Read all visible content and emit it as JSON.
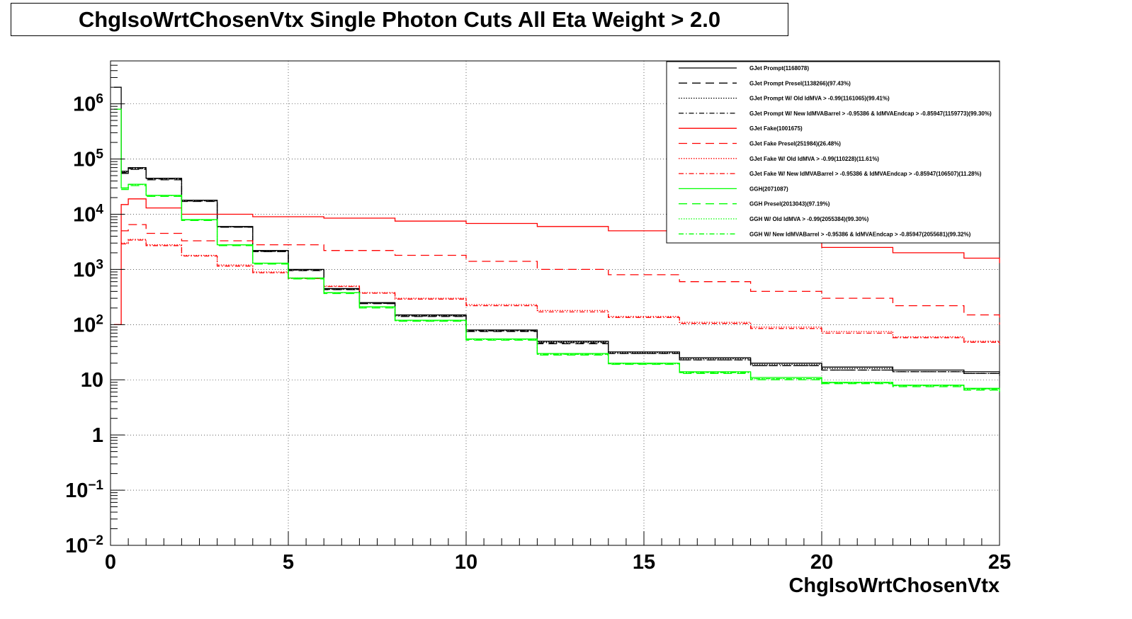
{
  "title": "ChgIsoWrtChosenVtx Single Photon Cuts All Eta Weight > 2.0",
  "chart_data": {
    "type": "line",
    "title": "ChgIsoWrtChosenVtx Single Photon Cuts All Eta Weight > 2.0",
    "xlabel": "ChgIsoWrtChosenVtx",
    "ylabel": "",
    "xlim": [
      0,
      25
    ],
    "ylim": [
      0.01,
      6000000
    ],
    "y_scale": "log",
    "grid": true,
    "legend_position": "top-right",
    "x_ticks": [
      {
        "value": 0,
        "label": "0"
      },
      {
        "value": 5,
        "label": "5"
      },
      {
        "value": 10,
        "label": "10"
      },
      {
        "value": 15,
        "label": "15"
      },
      {
        "value": 20,
        "label": "20"
      },
      {
        "value": 25,
        "label": "25"
      }
    ],
    "y_ticks": [
      {
        "value": 0.01,
        "base": "10",
        "exp": "−2"
      },
      {
        "value": 0.1,
        "base": "10",
        "exp": "−1"
      },
      {
        "value": 1,
        "base": "1",
        "exp": ""
      },
      {
        "value": 10,
        "base": "10",
        "exp": ""
      },
      {
        "value": 100,
        "base": "10",
        "exp": "2"
      },
      {
        "value": 1000,
        "base": "10",
        "exp": "3"
      },
      {
        "value": 10000,
        "base": "10",
        "exp": "4"
      },
      {
        "value": 100000,
        "base": "10",
        "exp": "5"
      },
      {
        "value": 1000000,
        "base": "10",
        "exp": "6"
      }
    ],
    "series": [
      {
        "name": "GJet Prompt(1168078)",
        "color": "#000000",
        "style": "solid",
        "points": [
          [
            0.1,
            2000000
          ],
          [
            0.3,
            60000
          ],
          [
            0.5,
            70000
          ],
          [
            1,
            45000
          ],
          [
            2,
            18000
          ],
          [
            3,
            6000
          ],
          [
            4,
            2200
          ],
          [
            5,
            1000
          ],
          [
            6,
            450
          ],
          [
            7,
            250
          ],
          [
            8,
            150
          ],
          [
            10,
            80
          ],
          [
            12,
            50
          ],
          [
            14,
            32
          ],
          [
            16,
            25
          ],
          [
            18,
            20
          ],
          [
            20,
            17
          ],
          [
            22,
            15
          ],
          [
            24,
            14
          ],
          [
            25,
            13
          ]
        ]
      },
      {
        "name": "GJet Prompt Presel(1138266)(97.43%)",
        "color": "#000000",
        "style": "dashed",
        "points": [
          [
            0.3,
            55000
          ],
          [
            0.5,
            65000
          ],
          [
            1,
            42000
          ],
          [
            2,
            17000
          ],
          [
            3,
            5800
          ],
          [
            4,
            2100
          ],
          [
            5,
            950
          ],
          [
            6,
            430
          ],
          [
            7,
            240
          ],
          [
            8,
            140
          ],
          [
            10,
            75
          ],
          [
            12,
            45
          ],
          [
            14,
            30
          ],
          [
            16,
            23
          ],
          [
            18,
            18
          ],
          [
            20,
            15
          ],
          [
            22,
            14
          ],
          [
            24,
            13
          ],
          [
            25,
            12
          ]
        ]
      },
      {
        "name": "GJet Prompt W/ Old IdMVA > -0.99(1161065)(99.41%)",
        "color": "#000000",
        "style": "dotted",
        "points": [
          [
            0.3,
            58000
          ],
          [
            0.5,
            68000
          ],
          [
            1,
            44000
          ],
          [
            2,
            17500
          ],
          [
            3,
            5900
          ],
          [
            4,
            2150
          ],
          [
            5,
            980
          ],
          [
            6,
            440
          ],
          [
            7,
            245
          ],
          [
            8,
            145
          ],
          [
            10,
            78
          ],
          [
            12,
            48
          ],
          [
            14,
            31
          ],
          [
            16,
            24
          ],
          [
            18,
            19
          ],
          [
            20,
            16
          ],
          [
            22,
            14
          ],
          [
            24,
            13
          ],
          [
            25,
            12
          ]
        ]
      },
      {
        "name": "GJet Prompt W/ New IdMVABarrel > -0.95386 & IdMVAEndcap > -0.85947(1159773)(99.30%)",
        "color": "#000000",
        "style": "dashdot",
        "points": [
          [
            0.3,
            57000
          ],
          [
            0.5,
            67000
          ],
          [
            1,
            43500
          ],
          [
            2,
            17300
          ],
          [
            3,
            5850
          ],
          [
            4,
            2120
          ],
          [
            5,
            970
          ],
          [
            6,
            435
          ],
          [
            7,
            243
          ],
          [
            8,
            143
          ],
          [
            10,
            77
          ],
          [
            12,
            47
          ],
          [
            14,
            30
          ],
          [
            16,
            23
          ],
          [
            18,
            18
          ],
          [
            20,
            15
          ],
          [
            22,
            14
          ],
          [
            24,
            13
          ],
          [
            25,
            12
          ]
        ]
      },
      {
        "name": "GJet Fake(1001675)",
        "color": "#ff0000",
        "style": "solid",
        "points": [
          [
            0.1,
            100
          ],
          [
            0.3,
            15000
          ],
          [
            0.5,
            19000
          ],
          [
            1,
            13000
          ],
          [
            2,
            10000
          ],
          [
            4,
            9000
          ],
          [
            6,
            8500
          ],
          [
            8,
            7500
          ],
          [
            10,
            6800
          ],
          [
            12,
            6000
          ],
          [
            14,
            5000
          ],
          [
            16,
            4000
          ],
          [
            18,
            3200
          ],
          [
            20,
            2500
          ],
          [
            22,
            2000
          ],
          [
            24,
            1600
          ],
          [
            25,
            1300
          ]
        ]
      },
      {
        "name": "GJet Fake Presel(251984)(26.48%)",
        "color": "#ff0000",
        "style": "dashed",
        "points": [
          [
            0.3,
            5000
          ],
          [
            0.5,
            6500
          ],
          [
            1,
            4500
          ],
          [
            2,
            3300
          ],
          [
            4,
            2800
          ],
          [
            6,
            2200
          ],
          [
            8,
            1800
          ],
          [
            10,
            1400
          ],
          [
            12,
            1000
          ],
          [
            14,
            800
          ],
          [
            16,
            600
          ],
          [
            18,
            400
          ],
          [
            20,
            300
          ],
          [
            22,
            220
          ],
          [
            24,
            150
          ],
          [
            25,
            100
          ]
        ]
      },
      {
        "name": "GJet Fake W/ Old IdMVA > -0.99(110228)(11.61%)",
        "color": "#ff0000",
        "style": "dotted",
        "points": [
          [
            0.3,
            3000
          ],
          [
            0.5,
            3500
          ],
          [
            1,
            2800
          ],
          [
            2,
            1800
          ],
          [
            3,
            1200
          ],
          [
            4,
            900
          ],
          [
            5,
            700
          ],
          [
            6,
            500
          ],
          [
            7,
            380
          ],
          [
            8,
            300
          ],
          [
            10,
            230
          ],
          [
            12,
            180
          ],
          [
            14,
            140
          ],
          [
            16,
            110
          ],
          [
            18,
            90
          ],
          [
            20,
            75
          ],
          [
            22,
            60
          ],
          [
            24,
            50
          ],
          [
            25,
            45
          ]
        ]
      },
      {
        "name": "GJet Fake W/ New IdMVABarrel > -0.95386 & IdMVAEndcap > -0.85947(106507)(11.28%)",
        "color": "#ff0000",
        "style": "dashdot",
        "points": [
          [
            0.3,
            2900
          ],
          [
            0.5,
            3400
          ],
          [
            1,
            2700
          ],
          [
            2,
            1750
          ],
          [
            3,
            1150
          ],
          [
            4,
            870
          ],
          [
            5,
            680
          ],
          [
            6,
            490
          ],
          [
            7,
            370
          ],
          [
            8,
            290
          ],
          [
            10,
            220
          ],
          [
            12,
            170
          ],
          [
            14,
            135
          ],
          [
            16,
            105
          ],
          [
            18,
            85
          ],
          [
            20,
            70
          ],
          [
            22,
            58
          ],
          [
            24,
            48
          ],
          [
            25,
            43
          ]
        ]
      },
      {
        "name": "GGH(2071087)",
        "color": "#00ff00",
        "style": "solid",
        "points": [
          [
            0.1,
            800000
          ],
          [
            0.3,
            30000
          ],
          [
            0.5,
            35000
          ],
          [
            1,
            22000
          ],
          [
            2,
            8000
          ],
          [
            3,
            2800
          ],
          [
            4,
            1300
          ],
          [
            5,
            700
          ],
          [
            6,
            380
          ],
          [
            7,
            210
          ],
          [
            8,
            120
          ],
          [
            10,
            55
          ],
          [
            12,
            30
          ],
          [
            14,
            20
          ],
          [
            16,
            14
          ],
          [
            18,
            11
          ],
          [
            20,
            9
          ],
          [
            22,
            8
          ],
          [
            24,
            7
          ],
          [
            25,
            6
          ]
        ]
      },
      {
        "name": "GGH Presel(2013043)(97.19%)",
        "color": "#00ff00",
        "style": "dashed",
        "points": [
          [
            0.3,
            28000
          ],
          [
            0.5,
            33000
          ],
          [
            1,
            21000
          ],
          [
            2,
            7700
          ],
          [
            3,
            2700
          ],
          [
            4,
            1250
          ],
          [
            5,
            670
          ],
          [
            6,
            365
          ],
          [
            7,
            200
          ],
          [
            8,
            115
          ],
          [
            10,
            52
          ],
          [
            12,
            28
          ],
          [
            14,
            19
          ],
          [
            16,
            13
          ],
          [
            18,
            10
          ],
          [
            20,
            8.5
          ],
          [
            22,
            7.5
          ],
          [
            24,
            6.5
          ],
          [
            25,
            6
          ]
        ]
      },
      {
        "name": "GGH W/ Old IdMVA > -0.99(2055384)(99.30%)",
        "color": "#00ff00",
        "style": "dotted",
        "points": [
          [
            0.3,
            29500
          ],
          [
            0.5,
            34500
          ],
          [
            1,
            21800
          ],
          [
            2,
            7900
          ],
          [
            3,
            2780
          ],
          [
            4,
            1290
          ],
          [
            5,
            695
          ],
          [
            6,
            377
          ],
          [
            7,
            208
          ],
          [
            8,
            118
          ],
          [
            10,
            54
          ],
          [
            12,
            29
          ],
          [
            14,
            19.5
          ],
          [
            16,
            13.5
          ],
          [
            18,
            10.5
          ],
          [
            20,
            8.8
          ],
          [
            22,
            7.8
          ],
          [
            24,
            6.8
          ],
          [
            25,
            6
          ]
        ]
      },
      {
        "name": "GGH W/ New IdMVABarrel > -0.95386 & IdMVAEndcap > -0.85947(2055681)(99.32%)",
        "color": "#00ff00",
        "style": "dashdot",
        "points": [
          [
            0.3,
            29600
          ],
          [
            0.5,
            34600
          ],
          [
            1,
            21850
          ],
          [
            2,
            7920
          ],
          [
            3,
            2785
          ],
          [
            4,
            1292
          ],
          [
            5,
            696
          ],
          [
            6,
            378
          ],
          [
            7,
            208
          ],
          [
            8,
            118
          ],
          [
            10,
            54
          ],
          [
            12,
            29
          ],
          [
            14,
            19.5
          ],
          [
            16,
            13.5
          ],
          [
            18,
            10.5
          ],
          [
            20,
            8.8
          ],
          [
            22,
            7.8
          ],
          [
            24,
            6.8
          ],
          [
            25,
            6
          ]
        ]
      }
    ]
  }
}
